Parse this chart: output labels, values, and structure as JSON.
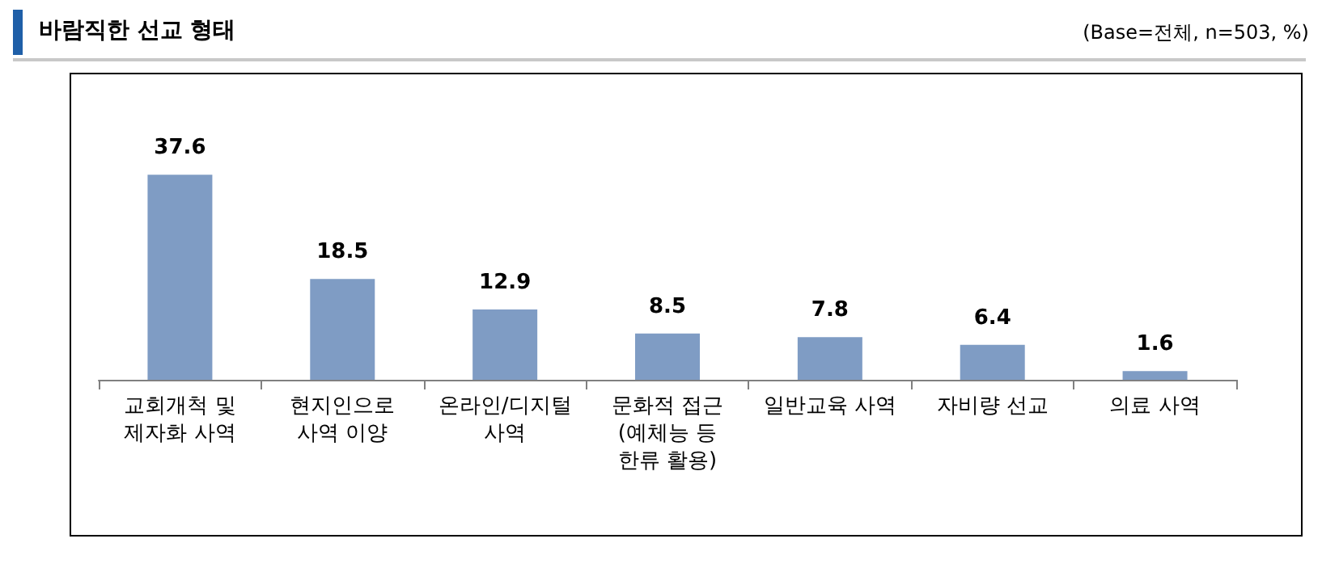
{
  "chart_data": {
    "type": "bar",
    "title": "바람직한 선교 형태",
    "annotations": [
      "(Base=전체, n=503, %)"
    ],
    "categories": [
      "교회개척 및\n제자화 사역",
      "현지인으로\n사역 이양",
      "온라인/디지털\n사역",
      "문화적 접근\n(예체능 등\n한류 활용)",
      "일반교육 사역",
      "자비량 선교",
      "의료 사역"
    ],
    "values": [
      37.6,
      18.5,
      12.9,
      8.5,
      7.8,
      6.4,
      1.6
    ],
    "color": "#7f9cc4",
    "data_labels": true
  }
}
